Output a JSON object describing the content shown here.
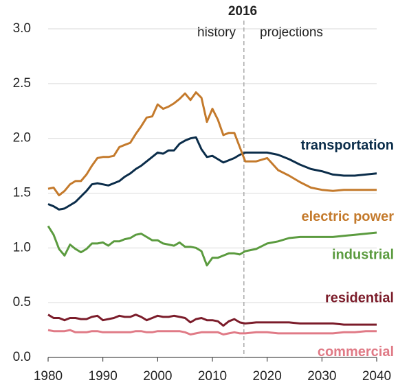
{
  "chart_data": {
    "type": "line",
    "divider": 2016,
    "divider_left": "history",
    "divider_right": "projections",
    "x": [
      1980,
      1981,
      1982,
      1983,
      1984,
      1985,
      1986,
      1987,
      1988,
      1989,
      1990,
      1991,
      1992,
      1993,
      1994,
      1995,
      1996,
      1997,
      1998,
      1999,
      2000,
      2001,
      2002,
      2003,
      2004,
      2005,
      2006,
      2007,
      2008,
      2009,
      2010,
      2011,
      2012,
      2013,
      2014,
      2015,
      2016,
      2018,
      2020,
      2022,
      2024,
      2026,
      2028,
      2030,
      2032,
      2034,
      2036,
      2038,
      2040
    ],
    "series": [
      {
        "name": "transportation",
        "color": "#0b2d4a",
        "values": [
          1.4,
          1.38,
          1.35,
          1.36,
          1.39,
          1.42,
          1.47,
          1.52,
          1.58,
          1.59,
          1.58,
          1.57,
          1.59,
          1.61,
          1.65,
          1.68,
          1.72,
          1.75,
          1.79,
          1.83,
          1.87,
          1.86,
          1.89,
          1.89,
          1.95,
          1.98,
          2.0,
          2.01,
          1.9,
          1.83,
          1.84,
          1.81,
          1.78,
          1.8,
          1.82,
          1.85,
          1.87,
          1.87,
          1.87,
          1.85,
          1.81,
          1.76,
          1.72,
          1.7,
          1.67,
          1.66,
          1.66,
          1.67,
          1.68
        ]
      },
      {
        "name": "electric power",
        "color": "#c47a2c",
        "values": [
          1.54,
          1.55,
          1.48,
          1.52,
          1.58,
          1.61,
          1.61,
          1.67,
          1.75,
          1.82,
          1.83,
          1.83,
          1.84,
          1.92,
          1.94,
          1.96,
          2.04,
          2.11,
          2.19,
          2.2,
          2.31,
          2.27,
          2.29,
          2.32,
          2.36,
          2.41,
          2.35,
          2.42,
          2.37,
          2.15,
          2.27,
          2.17,
          2.03,
          2.05,
          2.05,
          1.92,
          1.79,
          1.79,
          1.82,
          1.71,
          1.66,
          1.6,
          1.55,
          1.53,
          1.52,
          1.53,
          1.53,
          1.53,
          1.53
        ]
      },
      {
        "name": "industrial",
        "color": "#5b9b3f",
        "values": [
          1.2,
          1.12,
          0.99,
          0.93,
          1.03,
          0.99,
          0.96,
          0.99,
          1.04,
          1.04,
          1.05,
          1.02,
          1.06,
          1.06,
          1.08,
          1.09,
          1.12,
          1.13,
          1.1,
          1.07,
          1.07,
          1.04,
          1.03,
          1.02,
          1.05,
          1.01,
          1.01,
          1.0,
          0.97,
          0.84,
          0.91,
          0.91,
          0.93,
          0.95,
          0.95,
          0.94,
          0.97,
          0.99,
          1.04,
          1.06,
          1.09,
          1.1,
          1.1,
          1.1,
          1.1,
          1.11,
          1.12,
          1.13,
          1.14
        ]
      },
      {
        "name": "residential",
        "color": "#7b1c2a",
        "values": [
          0.39,
          0.36,
          0.36,
          0.34,
          0.36,
          0.36,
          0.35,
          0.35,
          0.37,
          0.38,
          0.34,
          0.35,
          0.36,
          0.38,
          0.37,
          0.37,
          0.39,
          0.37,
          0.34,
          0.36,
          0.38,
          0.37,
          0.37,
          0.38,
          0.37,
          0.36,
          0.32,
          0.35,
          0.36,
          0.34,
          0.34,
          0.33,
          0.29,
          0.33,
          0.35,
          0.32,
          0.31,
          0.32,
          0.32,
          0.32,
          0.32,
          0.31,
          0.31,
          0.31,
          0.31,
          0.3,
          0.3,
          0.3,
          0.3
        ]
      },
      {
        "name": "commercial",
        "color": "#e07a86",
        "values": [
          0.25,
          0.24,
          0.24,
          0.24,
          0.25,
          0.23,
          0.23,
          0.23,
          0.24,
          0.24,
          0.23,
          0.23,
          0.23,
          0.23,
          0.23,
          0.23,
          0.24,
          0.24,
          0.23,
          0.23,
          0.24,
          0.24,
          0.24,
          0.24,
          0.24,
          0.23,
          0.21,
          0.22,
          0.23,
          0.23,
          0.23,
          0.23,
          0.21,
          0.22,
          0.23,
          0.22,
          0.22,
          0.23,
          0.23,
          0.22,
          0.22,
          0.22,
          0.22,
          0.22,
          0.22,
          0.23,
          0.23,
          0.24,
          0.24
        ]
      }
    ],
    "xlim": [
      1980,
      2040
    ],
    "xticks": [
      1980,
      1990,
      2000,
      2010,
      2020,
      2030,
      2040
    ],
    "ylim": [
      0,
      3
    ],
    "yticks": [
      {
        "value": 0,
        "label": "0.0"
      },
      {
        "value": 0.5,
        "label": "0.5"
      },
      {
        "value": 1,
        "label": "1.0"
      },
      {
        "value": 1.5,
        "label": "1.5"
      },
      {
        "value": 2,
        "label": "2.0"
      },
      {
        "value": 2.5,
        "label": "2.5"
      },
      {
        "value": 3,
        "label": "3.0"
      }
    ],
    "grid": true
  }
}
